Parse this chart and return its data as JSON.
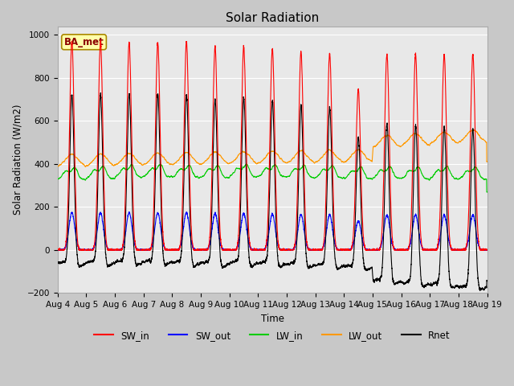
{
  "title": "Solar Radiation",
  "ylabel": "Solar Radiation (W/m2)",
  "xlabel": "Time",
  "ylim": [
    -200,
    1040
  ],
  "yticks": [
    -200,
    0,
    200,
    400,
    600,
    800,
    1000
  ],
  "n_days": 15,
  "points_per_day": 288,
  "colors": {
    "SW_in": "#ff0000",
    "SW_out": "#0000ff",
    "LW_in": "#00cc00",
    "LW_out": "#ff9900",
    "Rnet": "#000000"
  },
  "legend_label": "BA_met",
  "plot_bg_color": "#e8e8e8",
  "fig_bg_color": "#c8c8c8",
  "grid_color": "#ffffff",
  "linewidth": 0.8
}
